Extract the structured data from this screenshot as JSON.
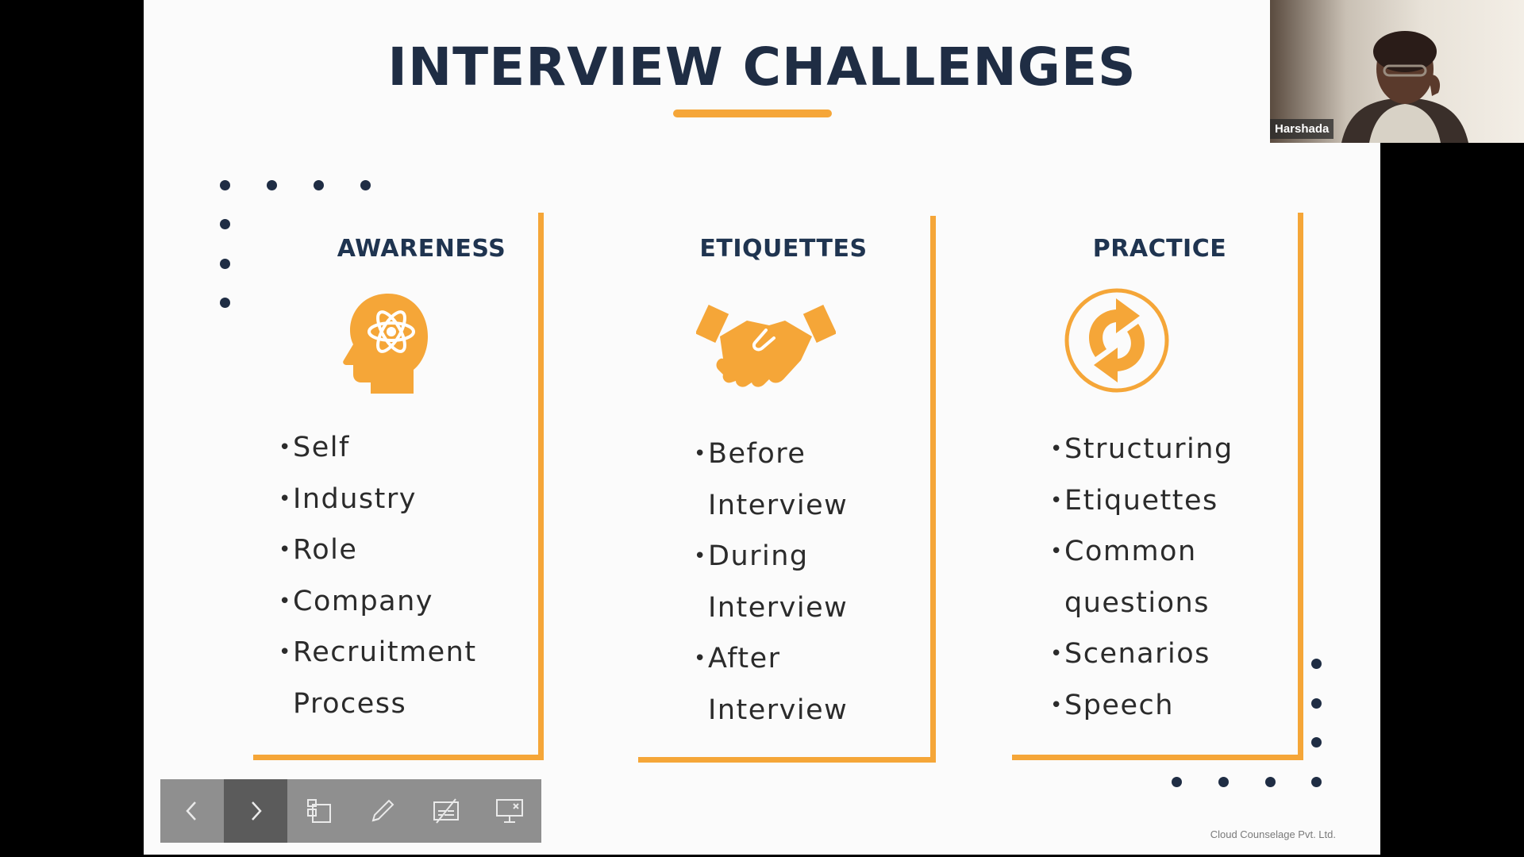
{
  "slide": {
    "title": "INTERVIEW CHALLENGES",
    "footer_note": "Cloud Counselage Pvt. Ltd.",
    "accent_color": "#f5a638",
    "text_color": "#1f2d44",
    "columns": [
      {
        "heading": "AWARENESS",
        "icon": "head-atom-icon",
        "items": [
          "Self",
          "Industry",
          "Role",
          "Company",
          "Recruitment",
          "Process"
        ]
      },
      {
        "heading": "ETIQUETTES",
        "icon": "handshake-icon",
        "items": [
          "Before",
          "Interview",
          "During",
          "Interview",
          "After",
          "Interview"
        ]
      },
      {
        "heading": "PRACTICE",
        "icon": "refresh-arrows-icon",
        "items": [
          "Structuring",
          "Etiquettes",
          "Common",
          "questions",
          "Scenarios",
          "Speech"
        ]
      }
    ]
  },
  "participant": {
    "name": "Harshada"
  },
  "toolbar": {
    "buttons": [
      {
        "icon": "chevron-left-icon",
        "active": false
      },
      {
        "icon": "chevron-right-icon",
        "active": true
      },
      {
        "icon": "slides-overview-icon",
        "active": false
      },
      {
        "icon": "pen-icon",
        "active": false
      },
      {
        "icon": "subtitles-off-icon",
        "active": false
      },
      {
        "icon": "stop-presenting-icon",
        "active": false
      }
    ]
  }
}
